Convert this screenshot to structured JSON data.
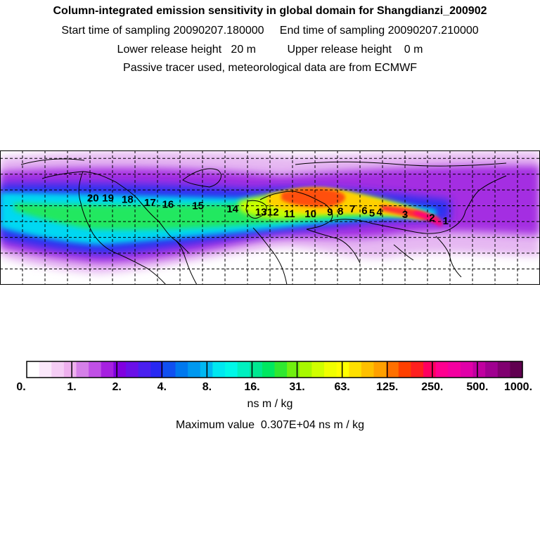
{
  "header": {
    "title": "Column-integrated emission sensitivity in global domain for Shangdianzi_200902",
    "line2": "Start time of sampling 20090207.180000     End time of sampling 20090207.210000",
    "line3": "Lower release height   20 m          Upper release height    0 m",
    "line4": "Passive tracer used, meteorological data are from ECMWF"
  },
  "colorbar": {
    "tick_labels": [
      "0.",
      "1.",
      "2.",
      "4.",
      "8.",
      "16.",
      "31.",
      "63.",
      "125.",
      "250.",
      "500.",
      "1000."
    ],
    "colors": [
      "#ffffff",
      "#fbe8fb",
      "#f5cdf5",
      "#eeb0ee",
      "#d580e8",
      "#c050e6",
      "#a620e0",
      "#8000e0",
      "#6a10e8",
      "#4a20f0",
      "#2828f2",
      "#1050f0",
      "#0078ee",
      "#0098f0",
      "#00b8f2",
      "#00e8f0",
      "#00f8e8",
      "#00f0c0",
      "#00e890",
      "#00e860",
      "#30e830",
      "#70f010",
      "#a8f800",
      "#d0ff00",
      "#f0ff00",
      "#ffff00",
      "#ffe000",
      "#ffc000",
      "#ffa000",
      "#ff7000",
      "#ff4000",
      "#ff2020",
      "#ff0060",
      "#ff0090",
      "#f400a0",
      "#e000a8",
      "#c000a0",
      "#a00090",
      "#800070",
      "#600050"
    ],
    "unit_label": "ns m / kg",
    "maximum_text": "Maximum value  0.307E+04 ns m / kg"
  },
  "map": {
    "track_labels": [
      "1",
      "2",
      "3",
      "4",
      "5",
      "6",
      "7",
      "8",
      "9",
      "10",
      "11",
      "12",
      "13",
      "14",
      "15",
      "16",
      "17",
      "18",
      "19",
      "20"
    ],
    "track_positions_lonlat": [
      [
        117.1,
        40.6
      ],
      [
        108,
        42.5
      ],
      [
        90,
        44.5
      ],
      [
        73,
        46
      ],
      [
        68,
        45.5
      ],
      [
        63,
        47
      ],
      [
        55,
        48
      ],
      [
        47,
        46.5
      ],
      [
        40,
        46
      ],
      [
        27,
        45
      ],
      [
        13,
        45
      ],
      [
        2,
        46
      ],
      [
        -6,
        46
      ],
      [
        -25,
        48
      ],
      [
        -48,
        50
      ],
      [
        -68,
        51
      ],
      [
        -80,
        52
      ],
      [
        -95,
        54
      ],
      [
        -108,
        55
      ],
      [
        -118,
        55
      ]
    ]
  },
  "chart_data": {
    "type": "heatmap",
    "title": "Column-integrated emission sensitivity in global domain for Shangdianzi_200902",
    "colorbar_levels": [
      0,
      1,
      2,
      4,
      8,
      16,
      31,
      63,
      125,
      250,
      500,
      1000
    ],
    "colorbar_unit": "ns m / kg",
    "maximum_value": 3070,
    "plume_core_lat_lon_path": [
      [
        117,
        40.5
      ],
      [
        100,
        44
      ],
      [
        80,
        46
      ],
      [
        60,
        47
      ],
      [
        40,
        46
      ],
      [
        20,
        45
      ],
      [
        0,
        46
      ],
      [
        -20,
        47
      ],
      [
        -50,
        50
      ],
      [
        -80,
        52
      ],
      [
        -110,
        55
      ]
    ]
  }
}
